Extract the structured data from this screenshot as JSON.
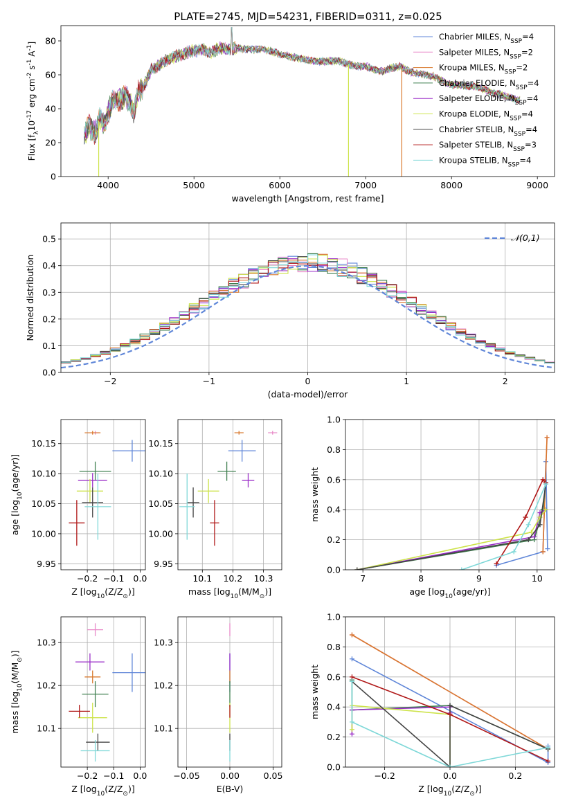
{
  "figure": {
    "title": "PLATE=2745, MJD=54231, FIBERID=0311, z=0.025"
  },
  "colors": {
    "chabrier_miles": "#5f86d8",
    "salpeter_miles": "#e889c8",
    "kroupa_miles": "#d9792e",
    "chabrier_elodie": "#3f7f4f",
    "salpeter_elodie": "#9b2fc8",
    "kroupa_elodie": "#cde34a",
    "chabrier_stelib": "#444444",
    "salpeter_stelib": "#b01818",
    "kroupa_stelib": "#7fd8d8",
    "gaussian": "#5f86d8"
  },
  "chart_data": [
    {
      "type": "line",
      "panel": "spectrum",
      "xlabel": "wavelength [Angstrom, rest frame]",
      "ylabel": "Flux [f$_\\lambda$10$^{-17}$ erg cm$^{-2}$ s$^{-1}$ A$^{-1}$]",
      "xlim": [
        3450,
        9200
      ],
      "ylim": [
        0,
        89
      ],
      "xticks": [
        4000,
        5000,
        6000,
        7000,
        8000,
        9000
      ],
      "yticks": [
        0,
        20,
        40,
        60,
        80
      ],
      "legend_position": "upper-right",
      "series": [
        {
          "name": "Chabrier MILES, N$_{SSP}$=4",
          "key": "chabrier_miles",
          "color": "#5f86d8"
        },
        {
          "name": "Salpeter MILES, N$_{SSP}$=2",
          "key": "salpeter_miles",
          "color": "#e889c8"
        },
        {
          "name": "Kroupa MILES, N$_{SSP}$=2",
          "key": "kroupa_miles",
          "color": "#d9792e"
        },
        {
          "name": "Chabrier ELODIE, N$_{SSP}$=4",
          "key": "chabrier_elodie",
          "color": "#3f7f4f"
        },
        {
          "name": "Salpeter ELODIE, N$_{SSP}$=4",
          "key": "salpeter_elodie",
          "color": "#9b2fc8"
        },
        {
          "name": "Kroupa ELODIE, N$_{SSP}$=4",
          "key": "kroupa_elodie",
          "color": "#cde34a"
        },
        {
          "name": "Chabrier STELIB, N$_{SSP}$=4",
          "key": "chabrier_stelib",
          "color": "#444444"
        },
        {
          "name": "Salpeter STELIB, N$_{SSP}$=3",
          "key": "salpeter_stelib",
          "color": "#b01818"
        },
        {
          "name": "Kroupa STELIB, N$_{SSP}$=4",
          "key": "kroupa_stelib",
          "color": "#7fd8d8"
        }
      ],
      "continuum": {
        "x": [
          3720,
          3780,
          3850,
          3900,
          3950,
          4000,
          4050,
          4100,
          4150,
          4200,
          4250,
          4300,
          4350,
          4400,
          4450,
          4500,
          4600,
          4700,
          4800,
          4900,
          5000,
          5100,
          5200,
          5300,
          5400,
          5500,
          5600,
          5700,
          5800,
          5900,
          6000,
          6100,
          6200,
          6300,
          6400,
          6500,
          6600,
          6700,
          6800,
          6900,
          7000,
          7100,
          7200,
          7300,
          7400,
          7500,
          7600,
          7700,
          7800,
          7900,
          8000,
          8100,
          8200,
          8300,
          8400,
          8500,
          8600,
          8700,
          8800
        ],
        "y": [
          24,
          30,
          25,
          35,
          30,
          38,
          44,
          45,
          46,
          47,
          45,
          38,
          50,
          52,
          57,
          63,
          66,
          69,
          71,
          73,
          74,
          75,
          73,
          76,
          75,
          76,
          75,
          75,
          75,
          74,
          72,
          71,
          70,
          69,
          68,
          68,
          68,
          68,
          66,
          65,
          65,
          63,
          62,
          64,
          65,
          62,
          61,
          60,
          59,
          56,
          54,
          54,
          53,
          53,
          51,
          49,
          48,
          46,
          45
        ]
      },
      "spikes": [
        {
          "series": "kroupa_miles",
          "x": 7420,
          "y": 0
        },
        {
          "series": "kroupa_elodie",
          "x": 6800,
          "y": 0
        },
        {
          "series": "kroupa_elodie",
          "x": 3890,
          "y": 0
        }
      ]
    },
    {
      "type": "histogram",
      "panel": "residuals",
      "xlabel": "(data-model)/error",
      "ylabel": "Normed distribution",
      "xlim": [
        -2.5,
        2.5
      ],
      "ylim": [
        0,
        0.56
      ],
      "xticks": [
        -2,
        -1,
        0,
        1,
        2
      ],
      "yticks": [
        0.0,
        0.1,
        0.2,
        0.3,
        0.4,
        0.5
      ],
      "bin_width": 0.1,
      "reference_curve": {
        "name": "$\\mathcal{N}(0,1)$",
        "sigma": 1,
        "color": "#5f86d8"
      },
      "legend_position": "upper-right"
    },
    {
      "type": "scatter",
      "panel": "age-vs-Z",
      "xlabel": "Z [log$_{10}$(Z/Z$_\\odot$)]",
      "ylabel": "age  [log$_{10}$(age/yr)]",
      "xlim": [
        -0.3,
        0.02
      ],
      "ylim": [
        9.94,
        10.19
      ],
      "xticks": [
        -0.2,
        -0.1,
        0.0
      ],
      "yticks": [
        9.95,
        10.0,
        10.05,
        10.1,
        10.15
      ],
      "points": [
        {
          "series": "chabrier_miles",
          "x": -0.03,
          "y": 10.138,
          "xerr": 0.075,
          "yerr": 0.018
        },
        {
          "series": "salpeter_miles",
          "x": -0.17,
          "y": 10.168,
          "xerr": 0.015,
          "yerr": 0.003
        },
        {
          "series": "kroupa_miles",
          "x": -0.18,
          "y": 10.168,
          "xerr": 0.03,
          "yerr": 0.003
        },
        {
          "series": "chabrier_elodie",
          "x": -0.17,
          "y": 10.104,
          "xerr": 0.06,
          "yerr": 0.016
        },
        {
          "series": "salpeter_elodie",
          "x": -0.18,
          "y": 10.089,
          "xerr": 0.055,
          "yerr": 0.012
        },
        {
          "series": "kroupa_elodie",
          "x": -0.19,
          "y": 10.071,
          "xerr": 0.05,
          "yerr": 0.02
        },
        {
          "series": "chabrier_stelib",
          "x": -0.18,
          "y": 10.052,
          "xerr": 0.04,
          "yerr": 0.025
        },
        {
          "series": "salpeter_stelib",
          "x": -0.24,
          "y": 10.018,
          "xerr": 0.03,
          "yerr": 0.038
        },
        {
          "series": "kroupa_stelib",
          "x": -0.16,
          "y": 10.045,
          "xerr": 0.05,
          "yerr": 0.055
        }
      ]
    },
    {
      "type": "scatter",
      "panel": "age-vs-mass",
      "xlabel": "mass [log$_{10}$(M/M$_\\odot$)]",
      "ylabel": "",
      "xlim": [
        10.02,
        10.36
      ],
      "ylim": [
        9.94,
        10.19
      ],
      "xticks": [
        10.1,
        10.2,
        10.3
      ],
      "yticks": [
        9.95,
        10.0,
        10.05,
        10.1,
        10.15
      ],
      "points": [
        {
          "series": "chabrier_miles",
          "x": 10.23,
          "y": 10.138,
          "xerr": 0.045,
          "yerr": 0.018
        },
        {
          "series": "salpeter_miles",
          "x": 10.33,
          "y": 10.168,
          "xerr": 0.015,
          "yerr": 0.003
        },
        {
          "series": "kroupa_miles",
          "x": 10.22,
          "y": 10.168,
          "xerr": 0.015,
          "yerr": 0.003
        },
        {
          "series": "chabrier_elodie",
          "x": 10.18,
          "y": 10.104,
          "xerr": 0.03,
          "yerr": 0.016
        },
        {
          "series": "salpeter_elodie",
          "x": 10.25,
          "y": 10.089,
          "xerr": 0.02,
          "yerr": 0.012
        },
        {
          "series": "kroupa_elodie",
          "x": 10.12,
          "y": 10.071,
          "xerr": 0.035,
          "yerr": 0.02
        },
        {
          "series": "chabrier_stelib",
          "x": 10.07,
          "y": 10.052,
          "xerr": 0.02,
          "yerr": 0.025
        },
        {
          "series": "salpeter_stelib",
          "x": 10.14,
          "y": 10.018,
          "xerr": 0.015,
          "yerr": 0.038
        },
        {
          "series": "kroupa_stelib",
          "x": 10.05,
          "y": 10.045,
          "xerr": 0.025,
          "yerr": 0.055
        }
      ]
    },
    {
      "type": "line",
      "panel": "mass-weight-vs-age",
      "xlabel": "age  [log$_{10}$(age/yr)]",
      "ylabel": "mass weight",
      "xlim": [
        6.7,
        10.3
      ],
      "ylim": [
        0,
        1
      ],
      "xticks": [
        7,
        8,
        9,
        10
      ],
      "yticks": [
        0.0,
        0.2,
        0.4,
        0.6,
        0.8,
        1.0
      ],
      "series": [
        {
          "key": "chabrier_miles",
          "color": "#5f86d8",
          "x": [
            9.3,
            10.1,
            10.15,
            10.18
          ],
          "y": [
            0.03,
            0.12,
            0.72,
            0.14
          ]
        },
        {
          "key": "salpeter_miles",
          "color": "#e889c8",
          "x": [
            10.1,
            10.17
          ],
          "y": [
            0.12,
            0.88
          ]
        },
        {
          "key": "kroupa_miles",
          "color": "#d9792e",
          "x": [
            10.1,
            10.17
          ],
          "y": [
            0.12,
            0.88
          ]
        },
        {
          "key": "chabrier_elodie",
          "color": "#3f7f4f",
          "x": [
            6.9,
            9.95,
            10.1,
            10.15
          ],
          "y": [
            0.0,
            0.2,
            0.4,
            0.58
          ]
        },
        {
          "key": "salpeter_elodie",
          "color": "#9b2fc8",
          "x": [
            6.9,
            9.95,
            10.05,
            10.15
          ],
          "y": [
            0.0,
            0.22,
            0.38,
            0.4
          ]
        },
        {
          "key": "kroupa_elodie",
          "color": "#cde34a",
          "x": [
            6.9,
            9.9,
            10.05,
            10.15
          ],
          "y": [
            0.0,
            0.25,
            0.35,
            0.4
          ]
        },
        {
          "key": "chabrier_stelib",
          "color": "#444444",
          "x": [
            6.9,
            9.85,
            10.05,
            10.15
          ],
          "y": [
            0.0,
            0.2,
            0.3,
            0.57
          ]
        },
        {
          "key": "salpeter_stelib",
          "color": "#b01818",
          "x": [
            9.3,
            9.8,
            10.1,
            10.15
          ],
          "y": [
            0.04,
            0.35,
            0.6,
            0.58
          ]
        },
        {
          "key": "kroupa_stelib",
          "color": "#7fd8d8",
          "x": [
            8.7,
            9.6,
            9.85,
            10.15
          ],
          "y": [
            0.0,
            0.12,
            0.3,
            0.57
          ]
        }
      ]
    },
    {
      "type": "scatter",
      "panel": "mass-vs-Z",
      "xlabel": "Z [log$_{10}$(Z/Z$_\\odot$)]",
      "ylabel": "mass [log$_{10}$(M/M$_\\odot$)]",
      "xlim": [
        -0.3,
        0.02
      ],
      "ylim": [
        10.01,
        10.36
      ],
      "xticks": [
        -0.2,
        -0.1,
        0.0
      ],
      "yticks": [
        10.1,
        10.2,
        10.3
      ],
      "points": [
        {
          "series": "chabrier_miles",
          "x": -0.03,
          "y": 10.23,
          "xerr": 0.075,
          "yerr": 0.045
        },
        {
          "series": "salpeter_miles",
          "x": -0.17,
          "y": 10.33,
          "xerr": 0.03,
          "yerr": 0.015
        },
        {
          "series": "kroupa_miles",
          "x": -0.18,
          "y": 10.22,
          "xerr": 0.03,
          "yerr": 0.015
        },
        {
          "series": "chabrier_elodie",
          "x": -0.17,
          "y": 10.18,
          "xerr": 0.05,
          "yerr": 0.03
        },
        {
          "series": "salpeter_elodie",
          "x": -0.19,
          "y": 10.255,
          "xerr": 0.055,
          "yerr": 0.02
        },
        {
          "series": "kroupa_elodie",
          "x": -0.18,
          "y": 10.125,
          "xerr": 0.055,
          "yerr": 0.035
        },
        {
          "series": "chabrier_stelib",
          "x": -0.16,
          "y": 10.068,
          "xerr": 0.045,
          "yerr": 0.02
        },
        {
          "series": "salpeter_stelib",
          "x": -0.23,
          "y": 10.14,
          "xerr": 0.04,
          "yerr": 0.015
        },
        {
          "series": "kroupa_stelib",
          "x": -0.17,
          "y": 10.048,
          "xerr": 0.055,
          "yerr": 0.025
        }
      ]
    },
    {
      "type": "scatter",
      "panel": "mass-vs-ebv",
      "xlabel": "E(B-V)",
      "ylabel": "",
      "xlim": [
        -0.06,
        0.06
      ],
      "ylim": [
        10.01,
        10.36
      ],
      "xticks": [
        -0.05,
        0.0,
        0.05
      ],
      "yticks": [
        10.1,
        10.2,
        10.3
      ],
      "points": [
        {
          "series": "chabrier_miles",
          "x": 0.0,
          "y": 10.23,
          "xerr": 0,
          "yerr": 0.045
        },
        {
          "series": "salpeter_miles",
          "x": 0.0,
          "y": 10.33,
          "xerr": 0,
          "yerr": 0.015
        },
        {
          "series": "kroupa_miles",
          "x": 0.0,
          "y": 10.22,
          "xerr": 0,
          "yerr": 0.015
        },
        {
          "series": "chabrier_elodie",
          "x": 0.0,
          "y": 10.18,
          "xerr": 0,
          "yerr": 0.03
        },
        {
          "series": "salpeter_elodie",
          "x": 0.0,
          "y": 10.255,
          "xerr": 0,
          "yerr": 0.02
        },
        {
          "series": "kroupa_elodie",
          "x": 0.0,
          "y": 10.125,
          "xerr": 0,
          "yerr": 0.035
        },
        {
          "series": "chabrier_stelib",
          "x": 0.0,
          "y": 10.068,
          "xerr": 0,
          "yerr": 0.02
        },
        {
          "series": "salpeter_stelib",
          "x": 0.0,
          "y": 10.14,
          "xerr": 0,
          "yerr": 0.015
        },
        {
          "series": "kroupa_stelib",
          "x": 0.0,
          "y": 10.048,
          "xerr": 0,
          "yerr": 0.025
        }
      ]
    },
    {
      "type": "line",
      "panel": "mass-weight-vs-Z",
      "xlabel": "Z [log$_{10}$(Z/Z$_\\odot$)]",
      "ylabel": "mass weight",
      "xlim": [
        -0.32,
        0.32
      ],
      "ylim": [
        0,
        1
      ],
      "xticks": [
        -0.2,
        0.0,
        0.2
      ],
      "yticks": [
        0.0,
        0.2,
        0.4,
        0.6,
        0.8,
        1.0
      ],
      "series": [
        {
          "key": "chabrier_miles",
          "color": "#5f86d8",
          "x": [
            -0.3,
            0.3,
            0.3
          ],
          "y": [
            0.72,
            0.03,
            0.14
          ]
        },
        {
          "key": "salpeter_miles",
          "color": "#e889c8",
          "x": [
            -0.3,
            0.3
          ],
          "y": [
            0.88,
            0.12
          ]
        },
        {
          "key": "kroupa_miles",
          "color": "#d9792e",
          "x": [
            -0.3,
            0.3
          ],
          "y": [
            0.88,
            0.12
          ]
        },
        {
          "key": "chabrier_elodie",
          "color": "#3f7f4f",
          "x": [
            -0.3,
            -0.3,
            0.0,
            0.3
          ],
          "y": [
            0.58,
            0.38,
            0.41,
            0.12
          ]
        },
        {
          "key": "salpeter_elodie",
          "color": "#9b2fc8",
          "x": [
            -0.3,
            -0.3,
            0.0,
            0.0
          ],
          "y": [
            0.22,
            0.38,
            0.4,
            0.36
          ]
        },
        {
          "key": "kroupa_elodie",
          "color": "#cde34a",
          "x": [
            -0.3,
            -0.3,
            0.0,
            0.0
          ],
          "y": [
            0.25,
            0.41,
            0.35,
            0.0
          ]
        },
        {
          "key": "chabrier_stelib",
          "color": "#444444",
          "x": [
            -0.3,
            0.0,
            0.0,
            0.3
          ],
          "y": [
            0.57,
            0.0,
            0.41,
            0.12
          ]
        },
        {
          "key": "salpeter_stelib",
          "color": "#b01818",
          "x": [
            -0.3,
            0.0,
            0.3
          ],
          "y": [
            0.6,
            0.35,
            0.04
          ]
        },
        {
          "key": "kroupa_stelib",
          "color": "#7fd8d8",
          "x": [
            -0.3,
            -0.3,
            0.0,
            0.3
          ],
          "y": [
            0.57,
            0.3,
            0.0,
            0.13
          ]
        }
      ]
    }
  ]
}
